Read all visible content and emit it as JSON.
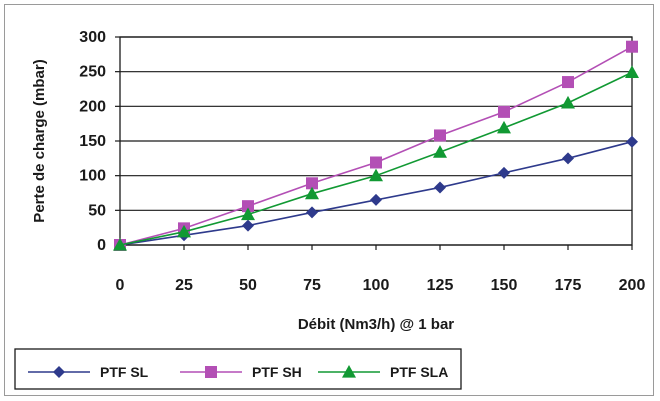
{
  "chart_data": {
    "type": "line",
    "xlabel": "Débit (Nm3/h) @ 1 bar",
    "ylabel": "Perte de charge (mbar)",
    "x": [
      0,
      25,
      50,
      75,
      100,
      125,
      150,
      175,
      200
    ],
    "xticks": [
      "0",
      "25",
      "50",
      "75",
      "100",
      "125",
      "150",
      "175",
      "200"
    ],
    "yticks": [
      "0",
      "50",
      "100",
      "150",
      "200",
      "250",
      "300"
    ],
    "xlim": [
      0,
      200
    ],
    "ylim": [
      0,
      300
    ],
    "grid": "horizontal",
    "legend_position": "bottom",
    "series": [
      {
        "name": "PTF SL",
        "color": "#2e3a8c",
        "marker": "diamond",
        "values": [
          0,
          14,
          28,
          47,
          65,
          83,
          104,
          125,
          149
        ]
      },
      {
        "name": "PTF SH",
        "color": "#b34fb5",
        "marker": "square",
        "values": [
          0,
          24,
          56,
          89,
          119,
          158,
          192,
          235,
          286
        ]
      },
      {
        "name": "PTF SLA",
        "color": "#119933",
        "marker": "triangle",
        "values": [
          0,
          19,
          44,
          74,
          100,
          134,
          169,
          205,
          249
        ]
      }
    ]
  }
}
